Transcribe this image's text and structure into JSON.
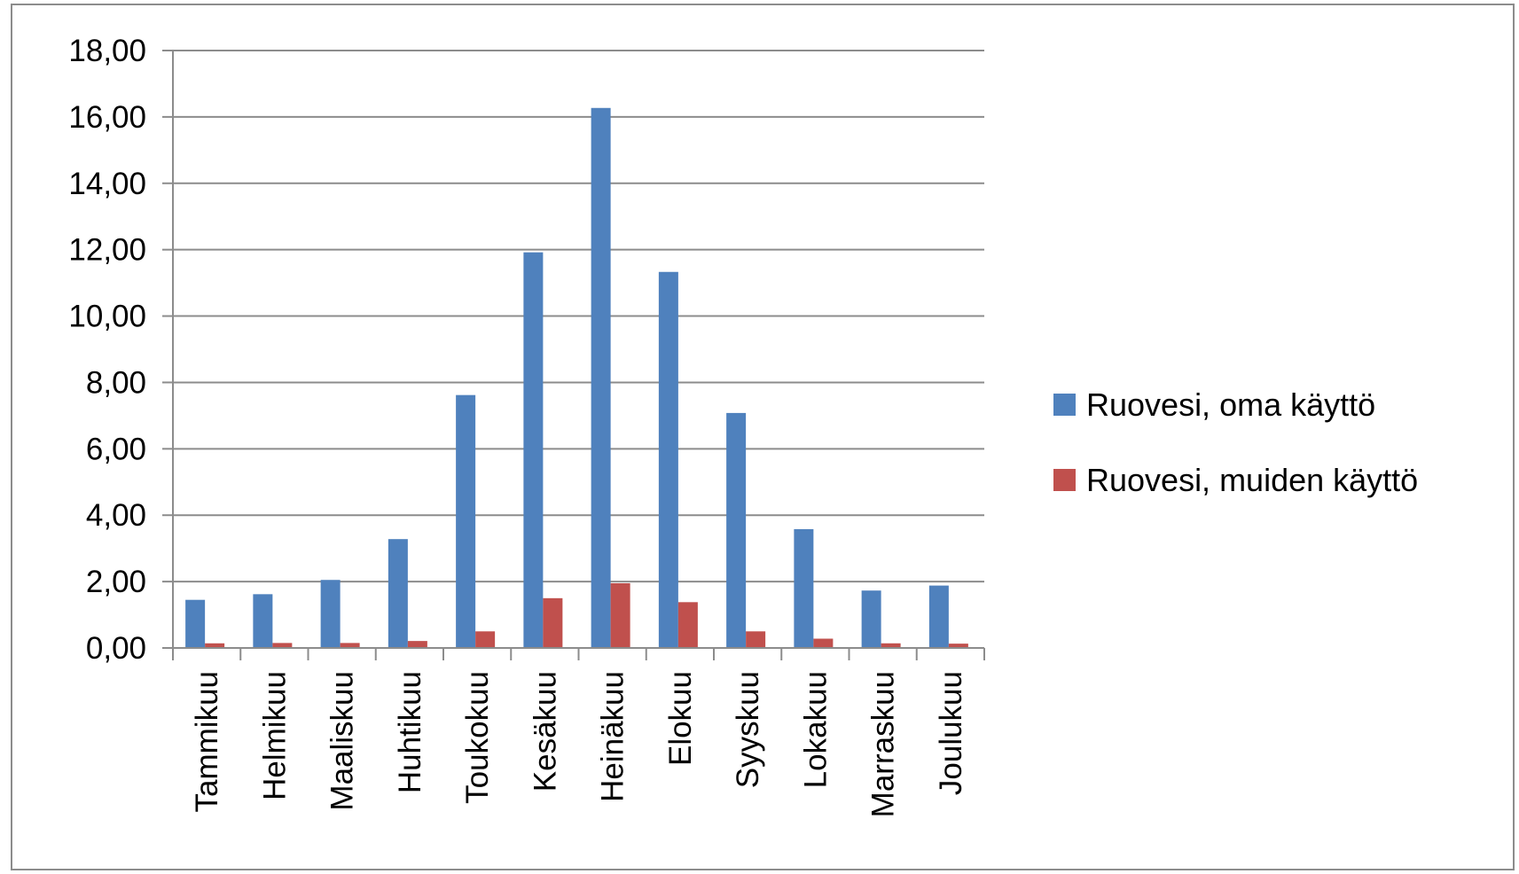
{
  "chart_data": {
    "type": "bar",
    "categories": [
      "Tammikuu",
      "Helmikuu",
      "Maaliskuu",
      "Huhtikuu",
      "Toukokuu",
      "Kesäkuu",
      "Heinäkuu",
      "Elokuu",
      "Syyskuu",
      "Lokakuu",
      "Marraskuu",
      "Joulukuu"
    ],
    "series": [
      {
        "name": "Ruovesi, oma käyttö",
        "color": "#4f81bd",
        "values": [
          1.45,
          1.62,
          2.05,
          3.28,
          7.62,
          11.92,
          16.27,
          11.33,
          7.08,
          3.58,
          1.73,
          1.88
        ]
      },
      {
        "name": "Ruovesi, muiden käyttö",
        "color": "#c0504d",
        "values": [
          0.14,
          0.15,
          0.15,
          0.21,
          0.5,
          1.5,
          1.95,
          1.38,
          0.5,
          0.28,
          0.14,
          0.13
        ]
      }
    ],
    "ylim": [
      0,
      18
    ],
    "yticks": [
      "0,00",
      "2,00",
      "4,00",
      "6,00",
      "8,00",
      "10,00",
      "12,00",
      "14,00",
      "16,00",
      "18,00"
    ],
    "grid": true,
    "legend": "right",
    "xlabel": "",
    "ylabel": "",
    "title": ""
  }
}
